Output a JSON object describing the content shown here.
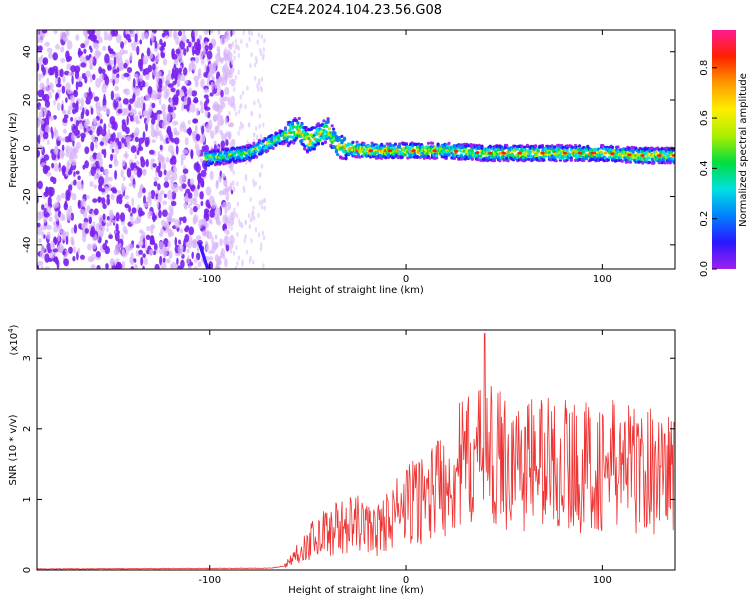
{
  "title": "C2E4.2024.104.23.56.G08",
  "colorbar": {
    "label": "Normalized spectral amplitude",
    "ticks": [
      "0.0",
      "0.2",
      "0.4",
      "0.6",
      "0.8"
    ],
    "stops": [
      "#a020f0",
      "#2a16ff",
      "#0080ff",
      "#00e0e0",
      "#00dd40",
      "#aaee00",
      "#ffee00",
      "#ff9900",
      "#ff2000",
      "#ff1a90"
    ]
  },
  "chart_data": [
    {
      "type": "heatmap",
      "title": "C2E4.2024.104.23.56.G08",
      "xlabel": "Height of straight line (km)",
      "ylabel": "Frequency (Hz)",
      "xlim": [
        -188,
        137
      ],
      "ylim": [
        -50,
        49
      ],
      "xticks": [
        -100,
        0,
        100
      ],
      "yticks": [
        -40,
        -20,
        0,
        20,
        40
      ],
      "colorbar_label": "Normalized spectral amplitude",
      "colorbar_range": [
        0,
        0.95
      ],
      "ridge": {
        "x": [
          -100,
          -90,
          -80,
          -70,
          -60,
          -55,
          -50,
          -45,
          -40,
          -35,
          -30,
          -20,
          0,
          20,
          40,
          60,
          80,
          100,
          120,
          137
        ],
        "y": [
          -4,
          -3,
          -2,
          2,
          6,
          8,
          3,
          5,
          8,
          1,
          0,
          -1,
          -1,
          -1,
          -2,
          -2,
          -2,
          -2,
          -3,
          -3
        ]
      }
    },
    {
      "type": "line",
      "xlabel": "Height of straight line (km)",
      "ylabel": "SNR (10 * v/v)",
      "scale_note": "(x10",
      "scale_exp": "4",
      "scale_close": ")",
      "xlim": [
        -188,
        137
      ],
      "ylim": [
        0,
        3.4
      ],
      "xticks": [
        -100,
        0,
        100
      ],
      "yticks": [
        0,
        1,
        2,
        3
      ],
      "series": [
        {
          "color": "#ee3333",
          "envelope": {
            "x": [
              -188,
              -70,
              -62,
              -55,
              -45,
              -35,
              -25,
              -15,
              -8,
              0,
              10,
              20,
              30,
              40,
              50,
              60,
              70,
              80,
              90,
              100,
              110,
              120,
              130,
              137
            ],
            "y": [
              0.01,
              0.02,
              0.05,
              0.25,
              0.5,
              0.6,
              0.65,
              0.55,
              0.75,
              0.9,
              1.05,
              1.3,
              1.5,
              1.6,
              1.55,
              1.5,
              1.55,
              1.5,
              1.45,
              1.45,
              1.5,
              1.4,
              1.45,
              1.4
            ]
          },
          "peak": {
            "x": 40,
            "y": 3.35
          }
        }
      ]
    }
  ]
}
